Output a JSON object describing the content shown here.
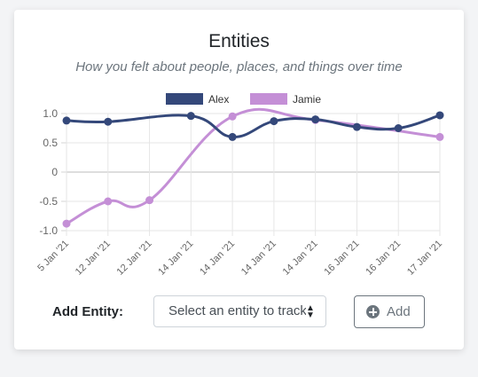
{
  "card": {
    "title": "Entities",
    "subtitle": "How you felt about people, places, and things over time"
  },
  "form": {
    "add_label": "Add Entity:",
    "select_value": "Select an entity to track",
    "add_button_label": "Add",
    "icons": {
      "add": "plus-circle-icon",
      "select": "sort-caret-icon"
    }
  },
  "chart_data": {
    "type": "line",
    "categories": [
      "5 Jan '21",
      "12 Jan '21",
      "12 Jan '21",
      "14 Jan '21",
      "14 Jan '21",
      "14 Jan '21",
      "14 Jan '21",
      "16 Jan '21",
      "16 Jan '21",
      "17 Jan '21"
    ],
    "series": [
      {
        "name": "Alex",
        "color": "#34487a",
        "values": [
          0.88,
          0.86,
          null,
          0.96,
          0.6,
          0.87,
          0.9,
          0.77,
          0.75,
          0.97
        ]
      },
      {
        "name": "Jamie",
        "color": "#c48fd6",
        "values": [
          -0.88,
          -0.5,
          -0.48,
          null,
          0.95,
          null,
          0.89,
          null,
          null,
          0.6
        ]
      }
    ],
    "ylim": [
      -1.0,
      1.0
    ],
    "yticks": [
      "1.0",
      "0.5",
      "0",
      "-0.5",
      "-1.0"
    ],
    "grid": true,
    "legend": "top"
  }
}
